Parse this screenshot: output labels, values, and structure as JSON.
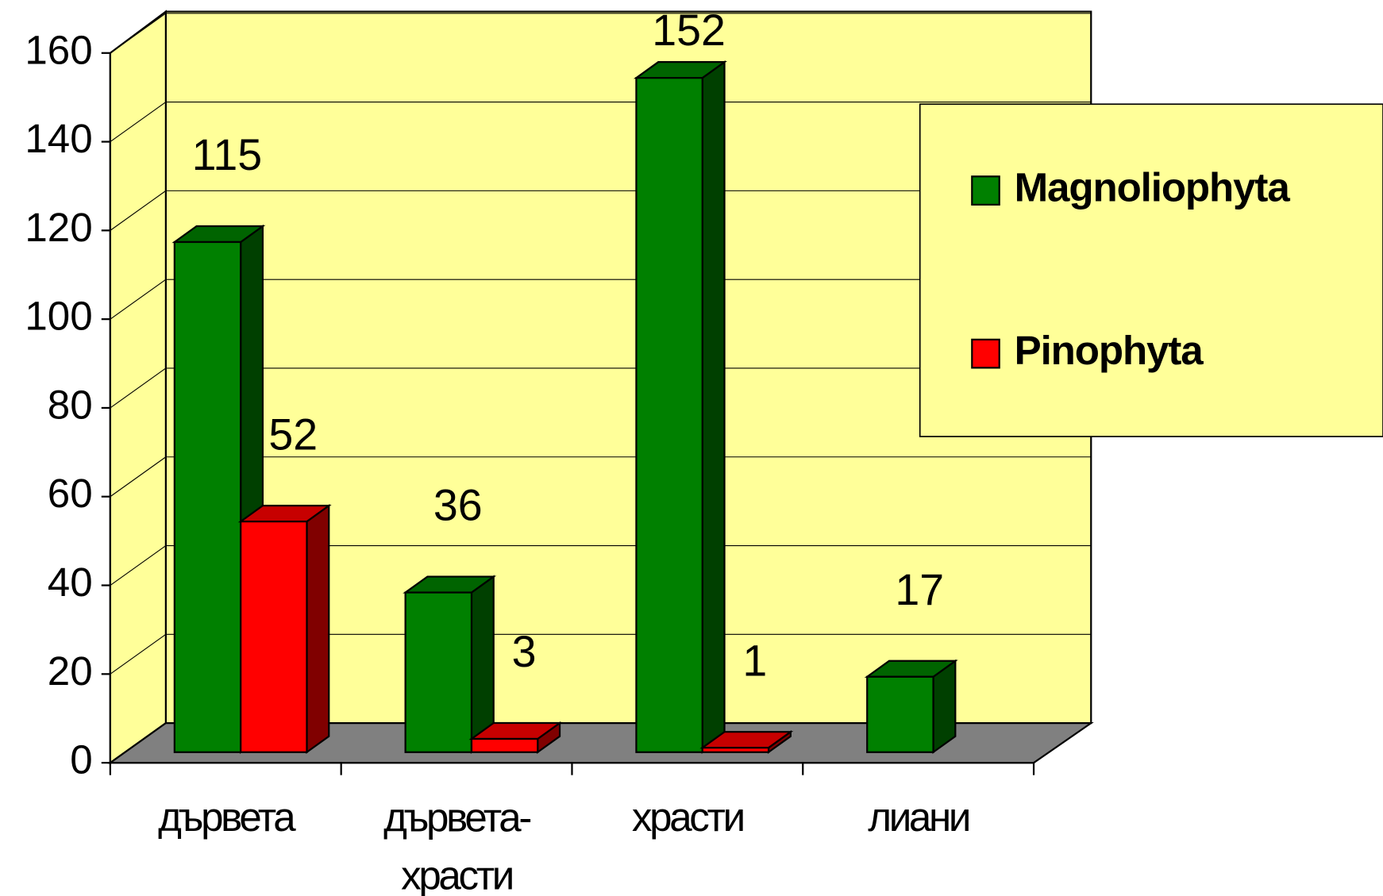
{
  "chart_data": {
    "type": "bar",
    "categories": [
      "дървета",
      "дървета-храсти",
      "храсти",
      "лиани"
    ],
    "series": [
      {
        "name": "Magnoliophyta",
        "color": "#008000",
        "values": [
          115,
          36,
          152,
          17
        ]
      },
      {
        "name": "Pinophyta",
        "color": "#ff0000",
        "values": [
          52,
          3,
          1,
          null
        ]
      }
    ],
    "ylim": [
      0,
      160
    ],
    "yticks": [
      0,
      20,
      40,
      60,
      80,
      100,
      120,
      140,
      160
    ],
    "grid": true,
    "legend": "right"
  }
}
